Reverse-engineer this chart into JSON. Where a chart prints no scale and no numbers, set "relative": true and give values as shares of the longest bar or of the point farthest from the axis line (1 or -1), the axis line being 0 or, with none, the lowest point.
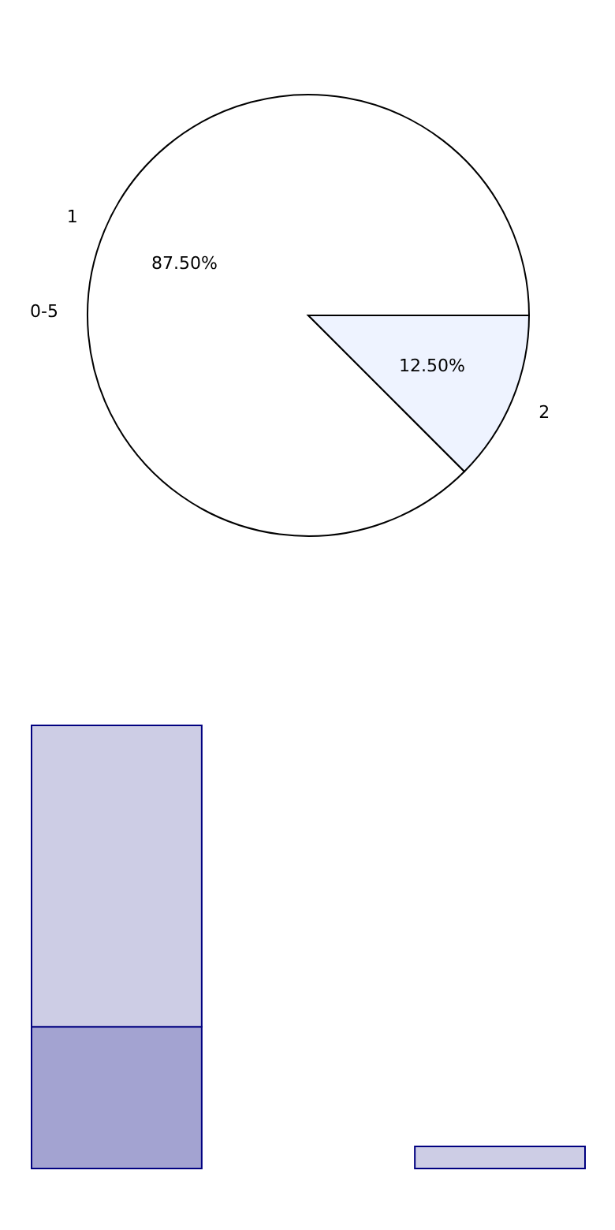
{
  "chart_data": [
    {
      "type": "pie",
      "categories": [
        "1",
        "2"
      ],
      "values": [
        87.5,
        12.5
      ],
      "colors": [
        "#ffffff",
        "#eef3ff"
      ],
      "value_labels": [
        "87.50%",
        "12.50%"
      ],
      "annotations": [
        "0-5"
      ],
      "legend": false
    },
    {
      "type": "bar",
      "relative": true,
      "stacked": true,
      "categories": [
        null,
        null
      ],
      "legend": false,
      "series": [
        {
          "color": "#a3a3d1",
          "values": [
            0.32,
            0
          ]
        },
        {
          "color": "#cdcde5",
          "values": [
            0.68,
            0.05
          ]
        }
      ]
    }
  ]
}
